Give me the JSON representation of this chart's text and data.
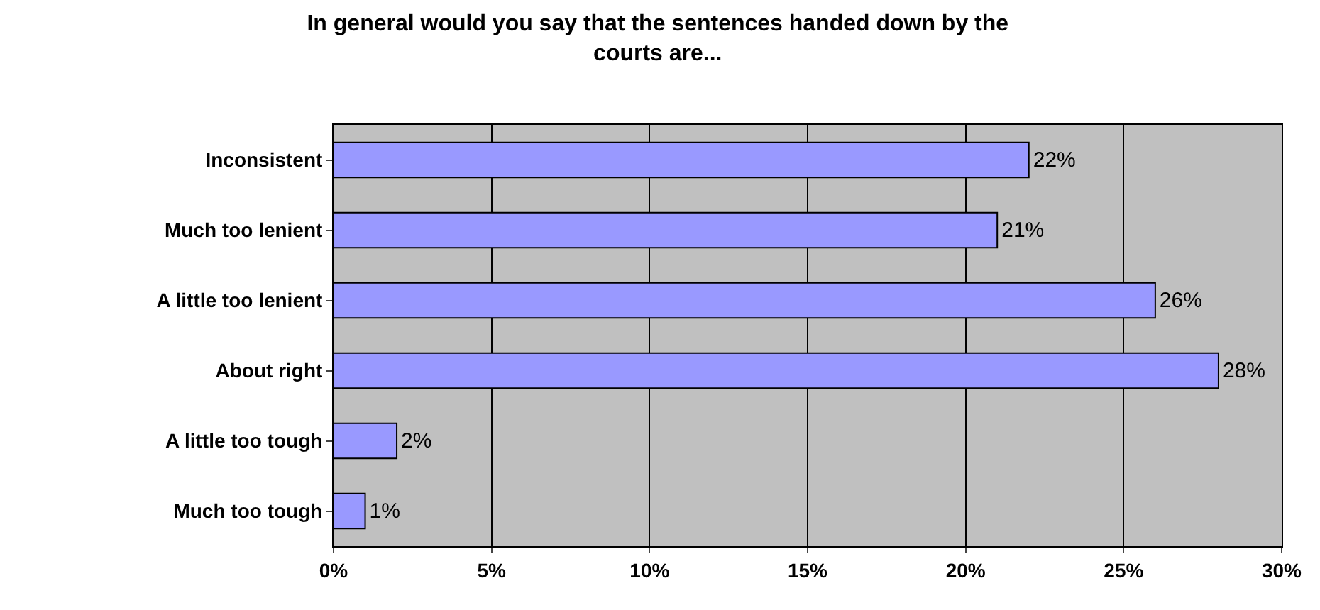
{
  "chart_data": {
    "type": "bar",
    "orientation": "horizontal",
    "title": "In general would you say that the sentences handed down by the courts are...",
    "categories": [
      "Inconsistent",
      "Much too lenient",
      "A little too lenient",
      "About right",
      "A little too tough",
      "Much too tough"
    ],
    "values": [
      22,
      21,
      26,
      28,
      2,
      1
    ],
    "value_labels": [
      "22%",
      "21%",
      "26%",
      "28%",
      "2%",
      "1%"
    ],
    "color": "#9999ff",
    "xlim": [
      0,
      30
    ],
    "xticks": [
      {
        "value": 0,
        "label": "0%"
      },
      {
        "value": 5,
        "label": "5%"
      },
      {
        "value": 10,
        "label": "10%"
      },
      {
        "value": 15,
        "label": "15%"
      },
      {
        "value": 20,
        "label": "20%"
      },
      {
        "value": 25,
        "label": "25%"
      },
      {
        "value": 30,
        "label": "30%"
      }
    ],
    "grid": "x",
    "legend": false
  }
}
